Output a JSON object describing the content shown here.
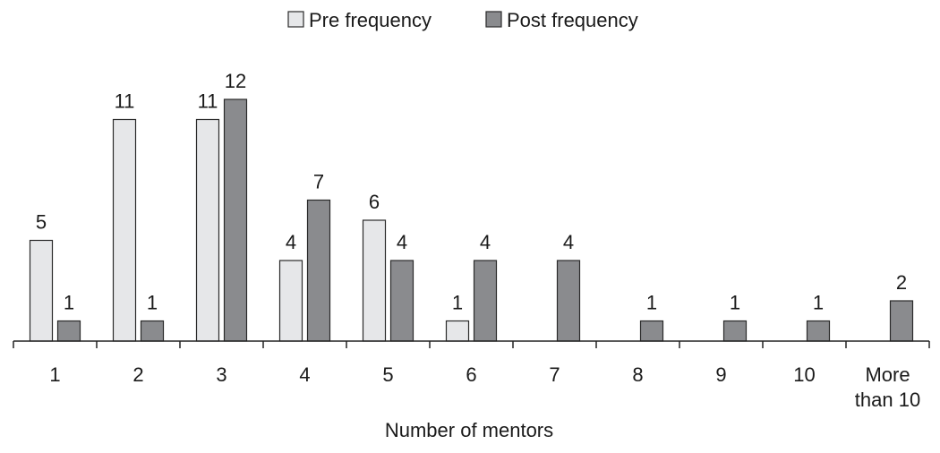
{
  "chart_data": {
    "type": "bar",
    "xlabel": "Number of mentors",
    "ylabel": "",
    "ylim": [
      0,
      12
    ],
    "grid": false,
    "legend_position": "top-center",
    "categories": [
      [
        "1"
      ],
      [
        "2"
      ],
      [
        "3"
      ],
      [
        "4"
      ],
      [
        "5"
      ],
      [
        "6"
      ],
      [
        "7"
      ],
      [
        "8"
      ],
      [
        "9"
      ],
      [
        "10"
      ],
      [
        "More",
        "than 10"
      ]
    ],
    "series": [
      {
        "name": "Pre frequency",
        "color": "#e6e7e9",
        "values": [
          5,
          11,
          11,
          4,
          6,
          1,
          null,
          null,
          null,
          null,
          null
        ]
      },
      {
        "name": "Post frequency",
        "color": "#8a8b8e",
        "values": [
          1,
          1,
          12,
          7,
          4,
          4,
          4,
          1,
          1,
          1,
          2
        ]
      }
    ]
  }
}
